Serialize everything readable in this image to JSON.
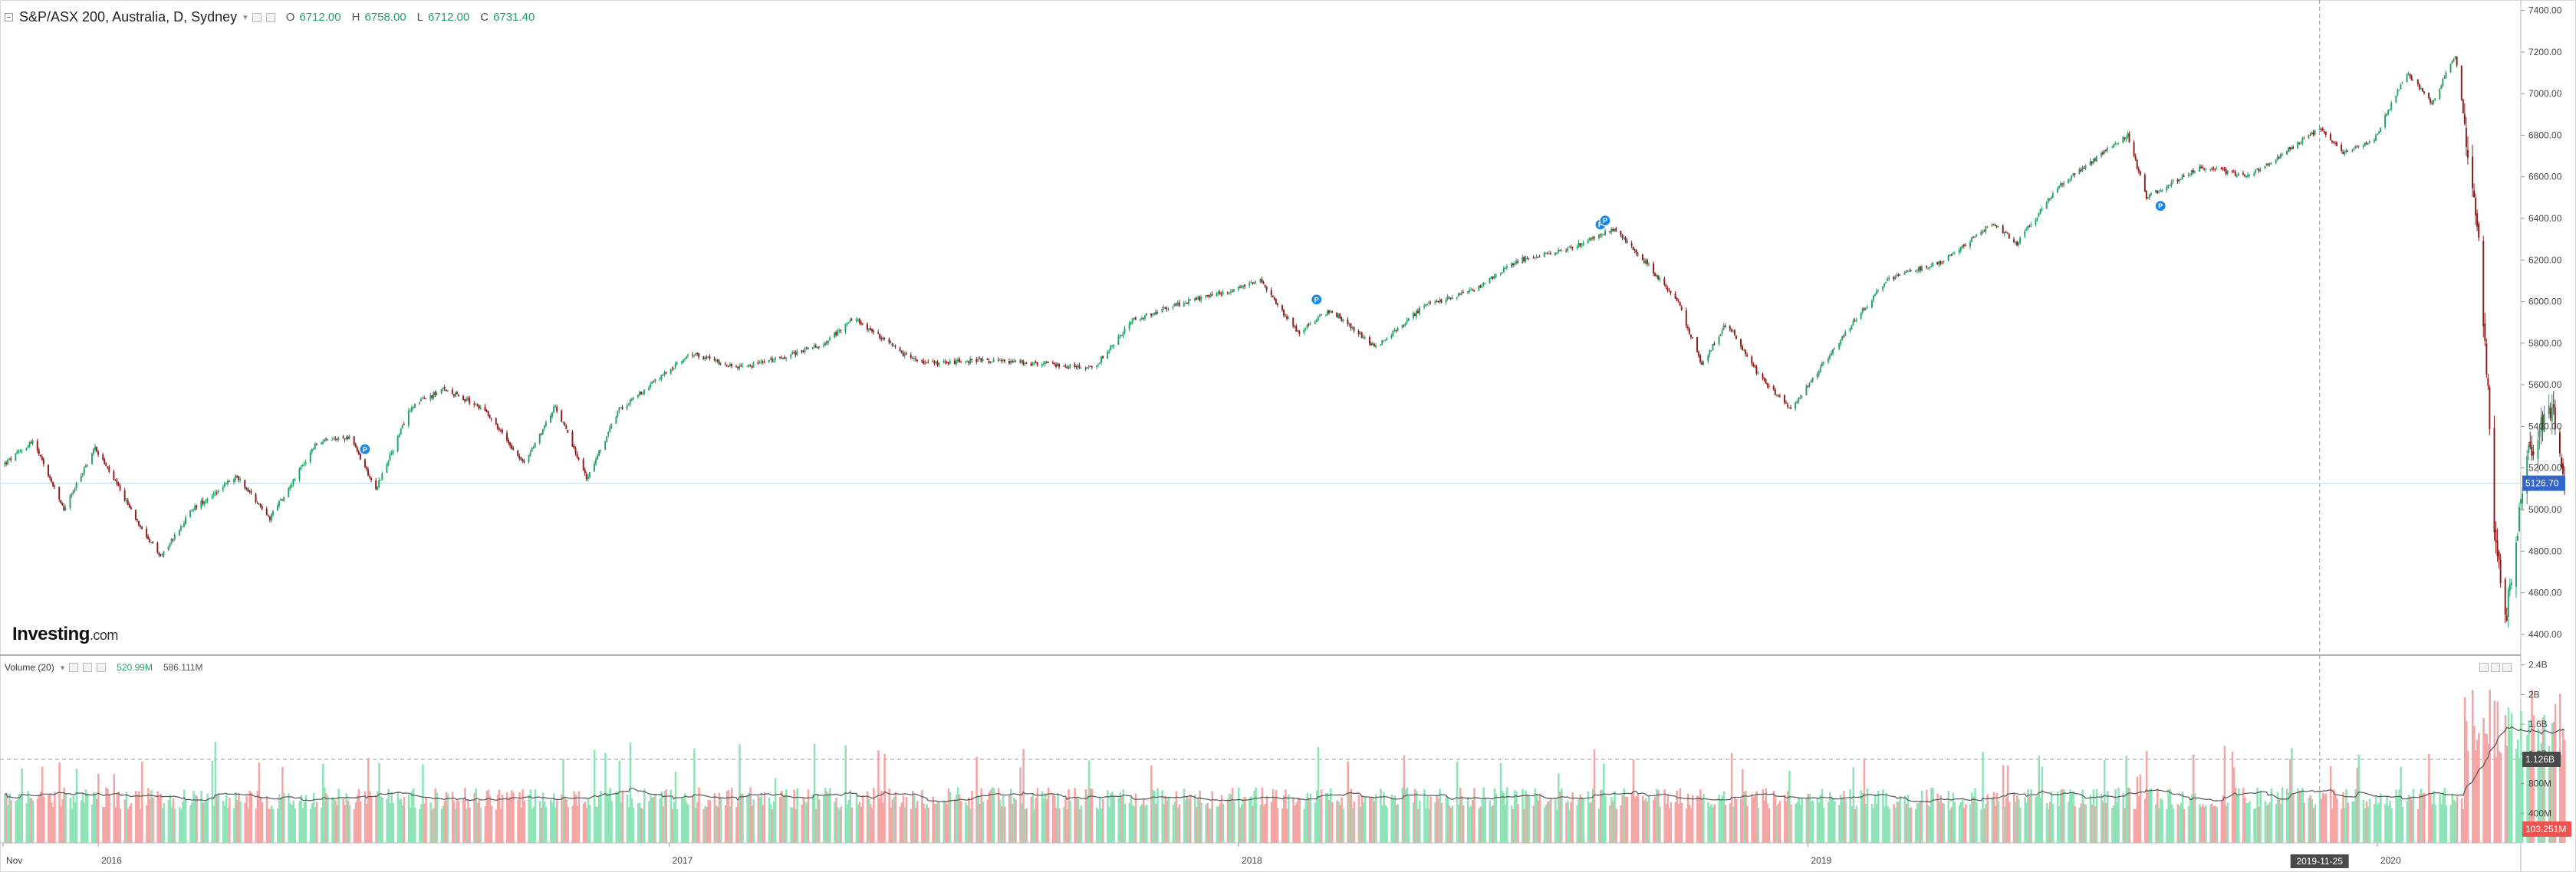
{
  "header": {
    "symbol": "S&P/ASX 200, Australia, D, Sydney",
    "open_key": "O",
    "open": "6712.00",
    "high_key": "H",
    "high": "6758.00",
    "low_key": "L",
    "low": "6712.00",
    "close_key": "C",
    "close": "6731.40"
  },
  "volume_legend": {
    "label": "Volume (20)",
    "value1": "520.99M",
    "value2": "586.111M"
  },
  "watermark": {
    "brand": "Investing",
    "suffix": ".com"
  },
  "price_axis": {
    "ticks": [
      "7400.00",
      "7200.00",
      "7000.00",
      "6800.00",
      "6600.00",
      "6400.00",
      "6200.00",
      "6000.00",
      "5800.00",
      "5600.00",
      "5400.00",
      "5200.00",
      "5000.00",
      "4800.00",
      "4600.00",
      "4400.00"
    ],
    "last_price_label": "5126.70"
  },
  "volume_axis": {
    "ticks": [
      "2.4B",
      "2B",
      "1.6B",
      "1.2B",
      "800M",
      "400M"
    ],
    "ma_label": "1.126B",
    "last_volume_label": "103.251M"
  },
  "time_axis": {
    "labels": [
      "Nov",
      "2016",
      "2017",
      "2018",
      "2019",
      "2020"
    ],
    "crosshair_label": "2019-11-25"
  },
  "colors": {
    "up": "#26a269",
    "down": "#8b1d1d",
    "vol_up": "#8ee3b9",
    "vol_down": "#f4a6a6",
    "last_price": "#3366cc",
    "last_volume": "#ef5350",
    "grid_line": "#cfe3ea"
  },
  "chart_data": {
    "type": "candlestick",
    "x_start": "2015-11-01",
    "x_end": "2020-03-31",
    "ylim": [
      4300,
      7450
    ],
    "volume_ylim": [
      0,
      2.5
    ],
    "volume_unit": "B",
    "markers": [
      {
        "label": "P",
        "date": "2016-06-20",
        "price": 5290
      },
      {
        "label": "P",
        "date": "2018-02-20",
        "price": 6010
      },
      {
        "label": "P",
        "date": "2018-08-21",
        "price": 6370
      },
      {
        "label": "P",
        "date": "2018-08-24",
        "price": 6390
      },
      {
        "label": "P",
        "date": "2019-08-15",
        "price": 6460
      }
    ],
    "price_path": [
      [
        "2015-11-02",
        5220
      ],
      [
        "2015-11-20",
        5330
      ],
      [
        "2015-12-10",
        5000
      ],
      [
        "2015-12-30",
        5300
      ],
      [
        "2016-01-25",
        4960
      ],
      [
        "2016-02-10",
        4770
      ],
      [
        "2016-03-01",
        5000
      ],
      [
        "2016-03-30",
        5160
      ],
      [
        "2016-04-20",
        4960
      ],
      [
        "2016-05-20",
        5320
      ],
      [
        "2016-06-10",
        5350
      ],
      [
        "2016-06-27",
        5100
      ],
      [
        "2016-07-20",
        5500
      ],
      [
        "2016-08-10",
        5580
      ],
      [
        "2016-09-05",
        5480
      ],
      [
        "2016-09-30",
        5220
      ],
      [
        "2016-10-20",
        5500
      ],
      [
        "2016-11-09",
        5150
      ],
      [
        "2016-11-30",
        5480
      ],
      [
        "2016-12-20",
        5600
      ],
      [
        "2017-01-15",
        5750
      ],
      [
        "2017-02-15",
        5680
      ],
      [
        "2017-03-10",
        5720
      ],
      [
        "2017-04-10",
        5800
      ],
      [
        "2017-04-30",
        5920
      ],
      [
        "2017-05-30",
        5750
      ],
      [
        "2017-06-15",
        5700
      ],
      [
        "2017-07-20",
        5720
      ],
      [
        "2017-08-30",
        5700
      ],
      [
        "2017-09-30",
        5680
      ],
      [
        "2017-10-25",
        5910
      ],
      [
        "2017-11-20",
        5980
      ],
      [
        "2017-12-30",
        6060
      ],
      [
        "2018-01-15",
        6100
      ],
      [
        "2018-02-08",
        5850
      ],
      [
        "2018-03-01",
        5960
      ],
      [
        "2018-03-30",
        5780
      ],
      [
        "2018-04-30",
        5980
      ],
      [
        "2018-05-30",
        6050
      ],
      [
        "2018-06-30",
        6200
      ],
      [
        "2018-07-30",
        6250
      ],
      [
        "2018-08-30",
        6350
      ],
      [
        "2018-09-20",
        6180
      ],
      [
        "2018-10-10",
        5990
      ],
      [
        "2018-10-25",
        5700
      ],
      [
        "2018-11-10",
        5900
      ],
      [
        "2018-12-01",
        5640
      ],
      [
        "2018-12-21",
        5480
      ],
      [
        "2019-01-20",
        5800
      ],
      [
        "2019-02-20",
        6100
      ],
      [
        "2019-03-30",
        6200
      ],
      [
        "2019-04-30",
        6380
      ],
      [
        "2019-05-15",
        6280
      ],
      [
        "2019-06-10",
        6550
      ],
      [
        "2019-07-25",
        6800
      ],
      [
        "2019-08-06",
        6500
      ],
      [
        "2019-09-10",
        6650
      ],
      [
        "2019-10-10",
        6600
      ],
      [
        "2019-10-30",
        6700
      ],
      [
        "2019-11-25",
        6830
      ],
      [
        "2019-12-10",
        6720
      ],
      [
        "2019-12-30",
        6780
      ],
      [
        "2020-01-20",
        7100
      ],
      [
        "2020-02-05",
        6950
      ],
      [
        "2020-02-20",
        7190
      ],
      [
        "2020-03-05",
        6400
      ],
      [
        "2020-03-12",
        5550
      ],
      [
        "2020-03-16",
        4900
      ],
      [
        "2020-03-23",
        4450
      ],
      [
        "2020-04-06",
        5250
      ],
      [
        "2020-04-22",
        5500
      ],
      [
        "2020-04-30",
        5126
      ]
    ]
  }
}
